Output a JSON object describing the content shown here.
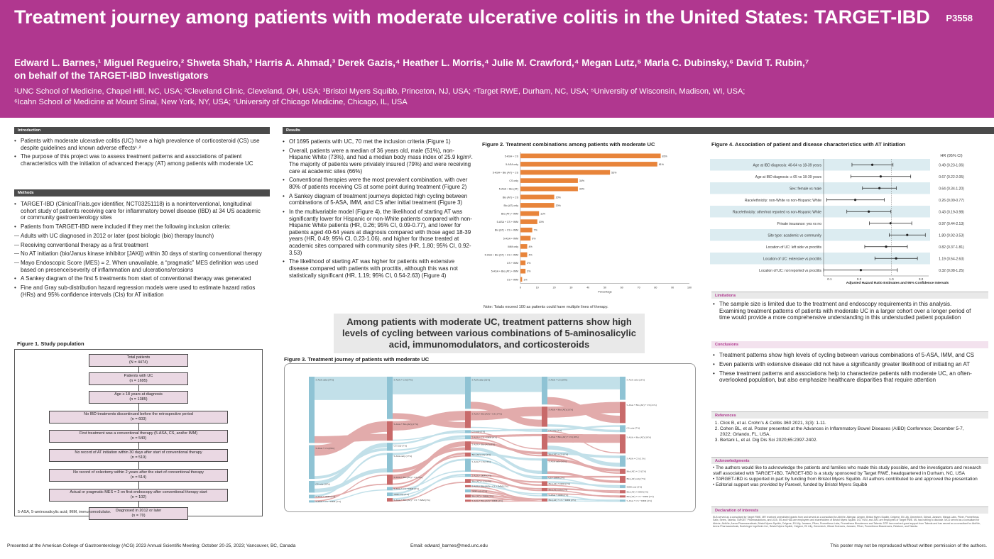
{
  "header": {
    "title": "Treatment journey among patients with moderate ulcerative colitis in the United States: TARGET-IBD",
    "poster_id": "P3558",
    "authors": "Edward L. Barnes,¹ Miguel Regueiro,² Shweta Shah,³ Harris A. Ahmad,³ Derek Gazis,⁴ Heather L. Morris,⁴ Julie M. Crawford,⁴ Megan Lutz,⁵ Marla C. Dubinsky,⁶ David T. Rubin,⁷",
    "authors_line2": "on behalf of the TARGET-IBD Investigators",
    "affiliations_1": "¹UNC School of Medicine, Chapel Hill, NC, USA; ²Cleveland Clinic, Cleveland, OH, USA; ³Bristol Myers Squibb, Princeton, NJ, USA; ⁴Target RWE, Durham, NC, USA; ⁵University of Wisconsin, Madison, WI, USA;",
    "affiliations_2": "⁶Icahn School of Medicine at Mount Sinai, New York, NY, USA; ⁷University of Chicago Medicine, Chicago, IL, USA"
  },
  "introduction": {
    "heading": "Introduction",
    "bullets": [
      "Patients with moderate ulcerative colitis (UC) have a high prevalence of corticosteroid (CS) use despite guidelines and known adverse effects¹˒²",
      "The purpose of this project was to assess treatment patterns and associations of patient characteristics with the initiation of advanced therapy (AT) among patients with moderate UC"
    ]
  },
  "methods": {
    "heading": "Methods",
    "bullets": [
      "TARGET-IBD (ClinicalTrials.gov identifier, NCT03251118) is a noninterventional, longitudinal cohort study of patients receiving care for inflammatory bowel disease (IBD) at 34 US academic or community gastroenterology sites",
      "Patients from TARGET-IBD were included if they met the following inclusion criteria:"
    ],
    "criteria": [
      "Adults with UC diagnosed in 2012 or later (post biologic (bio) therapy launch)",
      "Receiving conventional therapy as a first treatment",
      "No AT initiation (bio/Janus kinase inhibitor [JAKi]) within 30 days of starting conventional therapy",
      "Mayo Endoscopic Score (MES) = 2. When unavailable, a “pragmatic” MES definition was used based on presence/severity of inflammation and ulcerations/erosions"
    ],
    "bullets2": [
      "A Sankey diagram of the first 5 treatments from start of conventional therapy was generated",
      "Fine and Gray sub-distribution hazard regression models were used to estimate hazard ratios (HRs) and 95% confidence intervals (CIs) for AT initiation"
    ]
  },
  "figure1": {
    "title": "Figure 1. Study population",
    "boxes": [
      {
        "label": "Total patients",
        "n": "(N = 4474)"
      },
      {
        "label": "Patients with UC",
        "n": "(n = 1695)"
      },
      {
        "label": "Age ≥ 18 years at diagnosis",
        "n": "(n = 1385)"
      },
      {
        "label": "No IBD treatments discontinued before the retrospective period",
        "n": "(n = 603)"
      },
      {
        "label": "First treatment was a conventional therapy (5-ASA, CS, and/or IMM)",
        "n": "(n = 540)"
      },
      {
        "label": "No record of AT initiation within 30 days after start of conventional therapy",
        "n": "(n = 519)"
      },
      {
        "label": "No record of colectomy within 2 years after the start of conventional therapy",
        "n": "(n = 514)"
      },
      {
        "label": "Actual or pragmatic MES = 2 on first endoscopy after conventional therapy start",
        "n": "(n = 102)"
      },
      {
        "label": "Diagnosed in 2012 or later",
        "n": "(n = 70)"
      }
    ],
    "footnote": "5-ASA, 5-aminosalicylic acid; IMM, immunomodulator."
  },
  "results": {
    "heading": "Results",
    "bullets": [
      "Of 1695 patients with UC, 70 met the inclusion criteria (Figure 1)",
      "Overall, patients were a median of 36 years old, male (51%), non-Hispanic White (73%), and had a median body mass index of 25.9 kg/m². The majority of patients were privately insured (79%) and were receiving care at academic sites (66%)",
      "Conventional therapies were the most prevalent combination, with over 80% of patients receiving CS at some point during treatment (Figure 2)",
      "A Sankey diagram of treatment journeys depicted high cycling between combinations of 5-ASA, IMM, and CS after initial treatment (Figure 3)",
      "In the multivariable model (Figure 4), the likelihood of starting AT was significantly lower for Hispanic or non-White patients compared with non-Hispanic White patients (HR, 0.26; 95% CI, 0.09-0.77), and lower for patients aged 40-64 years at diagnosis compared with those aged 18-39 years (HR, 0.49; 95% CI, 0.23-1.06), and higher for those treated at academic sites compared with community sites (HR, 1.80; 95% CI, 0.92-3.53)",
      "The likelihood of starting AT was higher for patients with extensive disease compared with patients with proctitis, although this was not statistically significant (HR, 1.19; 95% CI, 0.54-2.63) (Figure 4)"
    ],
    "highlight": "Among patients with moderate UC, treatment patterns show high levels of cycling between various combinations of 5-aminosalicylic acid, immunomodulators, and corticosteroids"
  },
  "figure2": {
    "title": "Figure 2. Treatment combinations among patients with moderate UC",
    "note": "Note: Totals exceed 100 as patients could have multiple lines of therapy.",
    "chart_data": {
      "type": "bar",
      "orientation": "horizontal",
      "categories": [
        "5-ASA + CS",
        "5-ASA only",
        "5-ASA + Bio (AT) + CS",
        "CS only",
        "5-ASA + Bio (AT)",
        "Bio (AT) + CS",
        "Bio (AT) only",
        "Bio (AT) + IMM",
        "5-ASA + CS + IMM",
        "Bio (AT) + CS + IMM",
        "5-ASA + IMM",
        "IMM only",
        "5-ASA + Bio (AT) + CS + IMM",
        "CS + IMM",
        "5-ASA + Bio (AT) + IMM",
        "CS + IMM"
      ],
      "values": [
        83,
        81,
        53,
        34,
        34,
        20,
        20,
        11,
        10,
        7,
        6,
        4,
        4,
        3,
        3,
        1
      ],
      "value_labels": [
        "83%",
        "81%",
        "53%",
        "34%",
        "34%",
        "20%",
        "20%",
        "11%",
        "10%",
        "7%",
        "6%",
        "4%",
        "4%",
        "3%",
        "3%",
        "1%"
      ],
      "xlabel": "Percentage",
      "xlim": [
        0,
        100
      ],
      "xticks": [
        0,
        10,
        20,
        30,
        40,
        50,
        60,
        70,
        80,
        90,
        100
      ],
      "color": "#e8843a"
    }
  },
  "figure3": {
    "title": "Figure 3. Treatment journey of patients with moderate UC",
    "columns": [
      [
        "5-ASA only (57%)",
        "5-ASA + CS (29%)",
        "CS only (10%)",
        "5-ASA + IMM (3%)",
        "5-ASA + CS + IMM (1%)"
      ],
      [
        "5-ASA + CS (37%)",
        "5-ASA + Bio (AT) (17%)",
        "CS only (7%)",
        "5-ASA only (17%)",
        "5-ASA + Bio (AT) + CS (9%)",
        "5-ASA + CS + IMM (3%)",
        "IMM only (3%)",
        "5-ASA + Bio (AT) + CS + IMM (3%)"
      ],
      [
        "5-ASA only (32%)",
        "5-ASA + Bio (AT) + CS (17%)",
        "CS only (3%)",
        "5-ASA + CS + IMM (4%)",
        "5-ASA + Bio (AT) (9%)",
        "Bio (AT) only (4%)",
        "5-ASA + CS (13%)",
        "5-ASA + IMM (3%)",
        "Bio (AT) + CS (4%)",
        "5-ASA + Bio (AT) + CS + IMM (2%)",
        "IMM only (3%)",
        "Bio (AT) + IMM (3%)",
        "5-ASA + Bio (AT) + IMM (2%)"
      ],
      [
        "5-ASA + CS (18%)",
        "5-ASA + Bio (AT) (13%)",
        "CS only (2%)",
        "5-ASA + Bio (AT) + CS (10%)",
        "Bio (AT) + CS (3%)",
        "5-ASA only (10%)",
        "CS + IMM (2%)",
        "Bio (AT) + IMM (3%)",
        "Bio (AT) only (2%)",
        "5-ASA + IMM (2%)",
        "Bio (AT) + CS + IMM (2%)"
      ],
      [
        "5-ASA only (23%)",
        "5-ASA + Bio (AT) + CS (21%)",
        "CS only (7%)",
        "5-ASA + Bio (AT) (19%)",
        "5-ASA + CS (11%)",
        "Bio (AT) + CS (5%)",
        "Bio (AT) only (7%)",
        "IMM only (3%)",
        "Bio (AT) + IMM (3%)",
        "Bio (AT) + CS + IMM (2%)",
        "5-ASA + CS + IMM (2%)"
      ]
    ]
  },
  "figure4": {
    "title": "Figure 4. Association of patient and disease characteristics with AT initiation",
    "hr_header": "HR (95% CI)",
    "xlabel": "Adjusted Hazard Ratio Estimates and 95% Confidence Intervals",
    "xticks": [
      "0.1",
      "0.3",
      "1.0",
      "3.0"
    ],
    "chart_data": {
      "type": "forest",
      "log_x": true,
      "xlim": [
        0.08,
        4.0
      ],
      "rows": [
        {
          "label": "Age at IBD diagnosis: 40-64 vs 18-39 years",
          "hr": 0.49,
          "lo": 0.23,
          "hi": 1.06,
          "text": "0.49 (0.23-1.06)"
        },
        {
          "label": "Age at IBD diagnosis: ≥ 65 vs 18-39 years",
          "hr": 0.67,
          "lo": 0.22,
          "hi": 2.05,
          "text": "0.67 (0.22-2.05)"
        },
        {
          "label": "Sex: female vs male",
          "hr": 0.64,
          "lo": 0.34,
          "hi": 1.2,
          "text": "0.64 (0.34-1.20)"
        },
        {
          "label": "Race/ethnicity: non-White vs non-Hispanic White",
          "hr": 0.26,
          "lo": 0.09,
          "hi": 0.77,
          "text": "0.26 (0.09-0.77)"
        },
        {
          "label": "Race/ethnicity: other/not reported vs non-Hispanic White",
          "hr": 0.43,
          "lo": 0.19,
          "hi": 0.98,
          "text": "0.43 (0.19-0.98)"
        },
        {
          "label": "Private insurance: yes vs no",
          "hr": 0.97,
          "lo": 0.44,
          "hi": 2.13,
          "text": "0.97 (0.44-2.13)"
        },
        {
          "label": "Site type: academic vs community",
          "hr": 1.8,
          "lo": 0.92,
          "hi": 3.53,
          "text": "1.80 (0.92-3.53)"
        },
        {
          "label": "Location of UC: left side vs proctitis",
          "hr": 0.82,
          "lo": 0.37,
          "hi": 1.81,
          "text": "0.82 (0.37-1.81)"
        },
        {
          "label": "Location of UC: extensive vs proctitis",
          "hr": 1.19,
          "lo": 0.54,
          "hi": 2.63,
          "text": "1.19 (0.54-2.63)"
        },
        {
          "label": "Location of UC: not reported vs proctitis",
          "hr": 0.32,
          "lo": 0.08,
          "hi": 1.25,
          "text": "0.32 (0.08-1.25)"
        }
      ]
    }
  },
  "limitations": {
    "heading": "Limitations",
    "bullets": [
      "The sample size is limited due to the treatment and endoscopy requirements in this analysis. Examining treatment patterns of patients with moderate UC in a larger cohort over a longer period of time would provide a more comprehensive understanding in this understudied patient population"
    ]
  },
  "conclusions": {
    "heading": "Conclusions",
    "bullets": [
      "Treatment patterns show high levels of cycling between various combinations of 5-ASA, IMM, and CS",
      "Even patients with extensive disease did not have a significantly greater likelihood of initiating an AT",
      "These treatment patterns and associations help to characterize patients with moderate UC, an often-overlooked population, but also emphasize healthcare disparities that require attention"
    ]
  },
  "references": {
    "heading": "References",
    "items": [
      "Click B, et al. Crohn’s & Colitis 360 2021, 3(3): 1-11.",
      "Cohen BL, et al. Poster presented at the Advances in Inflammatory Bowel Diseases (AIBD) Conference; December 5-7, 2022; Orlando, FL, USA.",
      "Bertani L, et al. Dig Dis Sci 2020;65:2397-2402."
    ]
  },
  "acknowledgments": {
    "heading": "Acknowledgments",
    "bullets": [
      "The authors would like to acknowledge the patients and families who made this study possible, and the investigators and research staff associated with TARGET-IBD. TARGET-IBD is a study sponsored by Target RWE, headquartered in Durham, NC, USA",
      "TARGET-IBD is supported in part by funding from Bristol Myers Squibb. All authors contributed to and approved the presentation",
      "Editorial support was provided by Parexel, funded by Bristol Myers Squibb"
    ]
  },
  "declaration": {
    "heading": "Declaration of interests",
    "text": "ELB served as a consultant for Target RWE. MR received unrestricted grants from and served as a consultant for AbbVie, Allergan, Amgen, Bristol Myers Squibb, Celgene, Eli Lilly, Genentech, Gilead, Janssen, Miraca Labs, Pfizer, Prometheus, Salix, Seres, Takeda, TARGET Pharmasolutions, and UCB. SS and HAA are employees and shareholders of Bristol Myers Squibb. DG, HLM, and JMC are employees of Target RWE. ML has nothing to disclose. MCD served as a consultant for Abbvie, AbbVie, Arena Pharmaceuticals, Bristol Myers Squibb, Celgene, Eli Lilly, Janssen, Pfizer, Prometheus Labs, Prometheus Biosciences and Takeda. DTR has received grant support from Takeda and has served as a consultant for AbbVie, Arena Pharmaceuticals, Boehringer Ingelheim Ltd., Bristol Myers Squibb, Celgene, Eli Lilly, Genentech, Gilead Sciences, Janssen, Pfizer, Prometheus Biosciences, Reistone, and Takeda."
  },
  "footer": {
    "left": "Presented at the American College of Gastroenterology (ACG) 2023 Annual Scientific Meeting; October 20-25, 2023; Vancouver, BC, Canada",
    "center": "Email: edward_barnes@med.unc.edu",
    "right": "This poster may not be reproduced without written permission of the authors."
  },
  "colors": {
    "header": "#b0378f",
    "bar": "#e8843a",
    "sankey_blue": "#aed6e2",
    "sankey_red": "#d99090"
  }
}
